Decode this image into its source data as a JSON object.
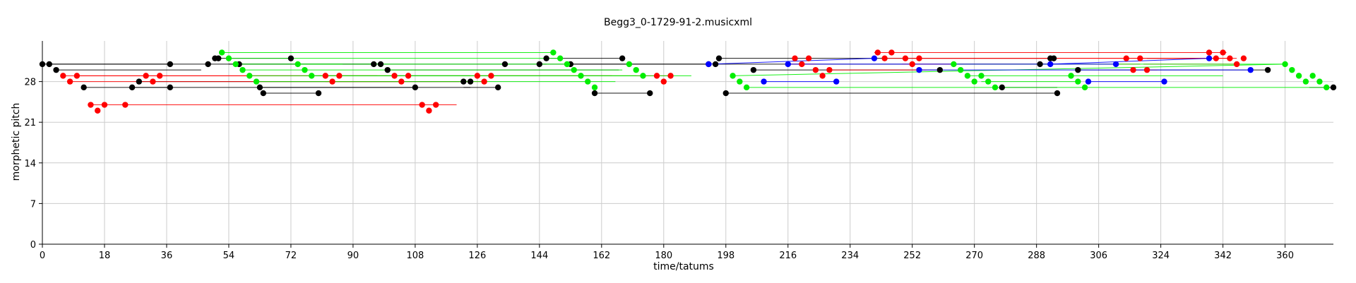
{
  "chart_data": {
    "type": "scatter",
    "title": "Begg3_0-1729-91-2.musicxml",
    "xlabel": "time/tatums",
    "ylabel": "morphetic pitch",
    "xlim": [
      0,
      374
    ],
    "ylim": [
      0,
      35
    ],
    "x_ticks": [
      0,
      18,
      36,
      54,
      72,
      90,
      108,
      126,
      144,
      162,
      180,
      198,
      216,
      234,
      252,
      270,
      288,
      306,
      324,
      342,
      360
    ],
    "y_ticks": [
      0,
      7,
      14,
      21,
      28
    ],
    "grid": true,
    "colors": {
      "black": "#000000",
      "red": "#ff0000",
      "green": "#00ee00",
      "blue": "#0000ff",
      "grid": "#cccccc"
    },
    "series": [
      {
        "color": "black",
        "segments": [
          [
            [
              0,
              31
            ],
            [
              193,
              31
            ]
          ],
          [
            [
              2,
              31
            ],
            [
              37,
              31
            ]
          ],
          [
            [
              4,
              30
            ],
            [
              46,
              30
            ]
          ],
          [
            [
              12,
              27
            ],
            [
              37,
              27
            ]
          ],
          [
            [
              25,
              27
            ],
            [
              132,
              27
            ]
          ],
          [
            [
              28,
              28
            ],
            [
              122,
              28
            ]
          ],
          [
            [
              51,
              32
            ],
            [
              72,
              32
            ]
          ],
          [
            [
              54,
              31
            ],
            [
              96,
              31
            ]
          ],
          [
            [
              57,
              31
            ],
            [
              98,
              31
            ]
          ],
          [
            [
              63,
              27
            ],
            [
              108,
              27
            ]
          ],
          [
            [
              64,
              26
            ],
            [
              80,
              26
            ]
          ],
          [
            [
              99,
              30
            ],
            [
              167,
              30
            ]
          ],
          [
            [
              103,
              29
            ],
            [
              124,
              29
            ]
          ],
          [
            [
              122,
              27
            ],
            [
              124,
              27
            ]
          ],
          [
            [
              145,
              31
            ],
            [
              146,
              31
            ]
          ],
          [
            [
              147,
              32
            ],
            [
              168,
              32
            ]
          ],
          [
            [
              153,
              31
            ],
            [
              193,
              31
            ]
          ],
          [
            [
              160,
              26
            ],
            [
              176,
              26
            ]
          ],
          [
            [
              195,
              31
            ],
            [
              292,
              31
            ]
          ],
          [
            [
              196,
              32
            ],
            [
              293,
              32
            ]
          ],
          [
            [
              198,
              26
            ],
            [
              294,
              26
            ]
          ],
          [
            [
              206,
              30
            ],
            [
              260,
              30
            ]
          ],
          [
            [
              278,
              27
            ],
            [
              294,
              27
            ]
          ],
          [
            [
              290,
              31
            ],
            [
              292,
              31
            ]
          ],
          [
            [
              300,
              30
            ],
            [
              355,
              30
            ]
          ],
          [
            [
              320,
              32
            ],
            [
              337,
              32
            ]
          ],
          [
            [
              367,
              27
            ],
            [
              374,
              27
            ]
          ]
        ],
        "points": [
          [
            0,
            31
          ],
          [
            2,
            31
          ],
          [
            4,
            30
          ],
          [
            12,
            27
          ],
          [
            26,
            27
          ],
          [
            28,
            28
          ],
          [
            37,
            31
          ],
          [
            37,
            27
          ],
          [
            48,
            31
          ],
          [
            50,
            32
          ],
          [
            51,
            32
          ],
          [
            57,
            31
          ],
          [
            63,
            27
          ],
          [
            64,
            26
          ],
          [
            72,
            32
          ],
          [
            80,
            26
          ],
          [
            96,
            31
          ],
          [
            98,
            31
          ],
          [
            100,
            30
          ],
          [
            108,
            27
          ],
          [
            122,
            28
          ],
          [
            124,
            28
          ],
          [
            132,
            27
          ],
          [
            134,
            31
          ],
          [
            144,
            31
          ],
          [
            146,
            32
          ],
          [
            153,
            31
          ],
          [
            160,
            26
          ],
          [
            168,
            32
          ],
          [
            176,
            26
          ],
          [
            193,
            31
          ],
          [
            195,
            31
          ],
          [
            196,
            32
          ],
          [
            198,
            26
          ],
          [
            206,
            30
          ],
          [
            260,
            30
          ],
          [
            278,
            27
          ],
          [
            289,
            31
          ],
          [
            292,
            32
          ],
          [
            293,
            32
          ],
          [
            294,
            26
          ],
          [
            300,
            30
          ],
          [
            355,
            30
          ],
          [
            374,
            27
          ]
        ]
      },
      {
        "color": "red",
        "segments": [
          [
            [
              6,
              29
            ],
            [
              165,
              29
            ]
          ],
          [
            [
              8,
              28
            ],
            [
              104,
              28
            ]
          ],
          [
            [
              10,
              29
            ],
            [
              102,
              29
            ]
          ],
          [
            [
              14,
              24
            ],
            [
              120,
              24
            ]
          ],
          [
            [
              80,
              29
            ],
            [
              97,
              29
            ]
          ],
          [
            [
              82,
              28
            ],
            [
              128,
              28
            ]
          ],
          [
            [
              126,
              29
            ],
            [
              182,
              29
            ]
          ],
          [
            [
              217,
              31
            ],
            [
              224,
              31
            ]
          ],
          [
            [
              228,
              30
            ],
            [
              256,
              30
            ]
          ],
          [
            [
              241,
              33
            ],
            [
              343,
              33
            ]
          ],
          [
            [
              244,
              32
            ],
            [
              346,
              32
            ]
          ],
          [
            [
              249,
              31
            ],
            [
              318,
              31
            ]
          ],
          [
            [
              252,
              32
            ],
            [
              344,
              32
            ]
          ],
          [
            [
              316,
              30
            ],
            [
              323,
              30
            ]
          ],
          [
            [
              319,
              31
            ],
            [
              346,
              31
            ]
          ]
        ],
        "points": [
          [
            6,
            29
          ],
          [
            8,
            28
          ],
          [
            10,
            29
          ],
          [
            14,
            24
          ],
          [
            16,
            23
          ],
          [
            18,
            24
          ],
          [
            24,
            24
          ],
          [
            30,
            29
          ],
          [
            32,
            28
          ],
          [
            34,
            29
          ],
          [
            82,
            29
          ],
          [
            84,
            28
          ],
          [
            86,
            29
          ],
          [
            102,
            29
          ],
          [
            104,
            28
          ],
          [
            106,
            29
          ],
          [
            110,
            24
          ],
          [
            112,
            23
          ],
          [
            114,
            24
          ],
          [
            126,
            29
          ],
          [
            128,
            28
          ],
          [
            130,
            29
          ],
          [
            178,
            29
          ],
          [
            180,
            28
          ],
          [
            182,
            29
          ],
          [
            218,
            32
          ],
          [
            220,
            31
          ],
          [
            222,
            32
          ],
          [
            224,
            30
          ],
          [
            226,
            29
          ],
          [
            228,
            30
          ],
          [
            242,
            33
          ],
          [
            244,
            32
          ],
          [
            246,
            33
          ],
          [
            250,
            32
          ],
          [
            252,
            31
          ],
          [
            254,
            32
          ],
          [
            314,
            32
          ],
          [
            316,
            30
          ],
          [
            318,
            32
          ],
          [
            320,
            30
          ],
          [
            338,
            33
          ],
          [
            340,
            32
          ],
          [
            342,
            33
          ],
          [
            344,
            32
          ],
          [
            346,
            31
          ],
          [
            348,
            32
          ]
        ]
      },
      {
        "color": "green",
        "segments": [
          [
            [
              52,
              33
            ],
            [
              148,
              33
            ]
          ],
          [
            [
              54,
              32
            ],
            [
              150,
              32
            ]
          ],
          [
            [
              56,
              31
            ],
            [
              152,
              31
            ]
          ],
          [
            [
              58,
              30
            ],
            [
              168,
              30
            ]
          ],
          [
            [
              60,
              29
            ],
            [
              172,
              29
            ]
          ],
          [
            [
              62,
              28
            ],
            [
              166,
              28
            ]
          ],
          [
            [
              74,
              31
            ],
            [
              87,
              31
            ]
          ],
          [
            [
              78,
              29
            ],
            [
              188,
              29
            ]
          ],
          [
            [
              200,
              29
            ],
            [
              360,
              31
            ]
          ],
          [
            [
              204,
              27
            ],
            [
              372,
              27
            ]
          ],
          [
            [
              264,
              31
            ],
            [
              360,
              31
            ]
          ],
          [
            [
              268,
              29
            ],
            [
              342,
              29
            ]
          ],
          [
            [
              272,
              28
            ],
            [
              300,
              28
            ]
          ]
        ],
        "points": [
          [
            52,
            33
          ],
          [
            54,
            32
          ],
          [
            56,
            31
          ],
          [
            58,
            30
          ],
          [
            60,
            29
          ],
          [
            62,
            28
          ],
          [
            74,
            31
          ],
          [
            76,
            30
          ],
          [
            78,
            29
          ],
          [
            148,
            33
          ],
          [
            150,
            32
          ],
          [
            152,
            31
          ],
          [
            154,
            30
          ],
          [
            156,
            29
          ],
          [
            158,
            28
          ],
          [
            160,
            27
          ],
          [
            170,
            31
          ],
          [
            172,
            30
          ],
          [
            174,
            29
          ],
          [
            200,
            29
          ],
          [
            202,
            28
          ],
          [
            204,
            27
          ],
          [
            264,
            31
          ],
          [
            266,
            30
          ],
          [
            268,
            29
          ],
          [
            270,
            28
          ],
          [
            272,
            29
          ],
          [
            274,
            28
          ],
          [
            276,
            27
          ],
          [
            298,
            29
          ],
          [
            300,
            28
          ],
          [
            302,
            27
          ],
          [
            360,
            31
          ],
          [
            362,
            30
          ],
          [
            364,
            29
          ],
          [
            366,
            28
          ],
          [
            368,
            29
          ],
          [
            370,
            28
          ],
          [
            372,
            27
          ]
        ]
      },
      {
        "color": "blue",
        "segments": [
          [
            [
              193,
              31
            ],
            [
              241,
              32
            ]
          ],
          [
            [
              209,
              28
            ],
            [
              230,
              28
            ]
          ],
          [
            [
              216,
              31
            ],
            [
              311,
              31
            ]
          ],
          [
            [
              254,
              30
            ],
            [
              350,
              30
            ]
          ],
          [
            [
              292,
              31
            ],
            [
              338,
              32
            ]
          ],
          [
            [
              303,
              28
            ],
            [
              325,
              28
            ]
          ]
        ],
        "points": [
          [
            193,
            31
          ],
          [
            209,
            28
          ],
          [
            216,
            31
          ],
          [
            230,
            28
          ],
          [
            241,
            32
          ],
          [
            254,
            30
          ],
          [
            292,
            31
          ],
          [
            303,
            28
          ],
          [
            311,
            31
          ],
          [
            325,
            28
          ],
          [
            338,
            32
          ],
          [
            350,
            30
          ]
        ]
      }
    ]
  }
}
